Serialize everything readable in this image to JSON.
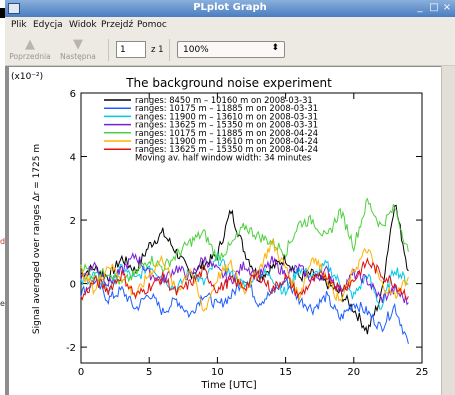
{
  "window": {
    "title": "PLplot Graph",
    "minimize_glyph": "_",
    "maximize_glyph": "□",
    "close_glyph": "×"
  },
  "left_fragments": [
    "d",
    "e"
  ],
  "menu": {
    "items": [
      {
        "name": "menu-plik",
        "label": "Plik"
      },
      {
        "name": "menu-edycja",
        "label": "Edycja"
      },
      {
        "name": "menu-widok",
        "label": "Widok"
      },
      {
        "name": "menu-przejdz",
        "label": "Przejdź"
      },
      {
        "name": "menu-pomoc",
        "label": "Pomoc"
      }
    ]
  },
  "toolbar": {
    "prev_label": "Poprzednia",
    "next_label": "Następna",
    "page_value": "1",
    "of_label": "z 1",
    "zoom_value": "100%",
    "chevron": "⌃⌄"
  },
  "colors": {
    "titlebar": "#4a7cc0",
    "black": "#000000",
    "blue": "#1f5fff",
    "cyan": "#00c8e6",
    "violet": "#7a1fd6",
    "green": "#4fcf3f",
    "orange": "#ffb000",
    "red": "#e01010"
  },
  "chart_data": {
    "type": "line",
    "title": "The background noise experiment",
    "xlabel": "Time [UTC]",
    "ylabel": "Signal averaged over ranges Δr = 1725 m",
    "y_exponent_label": "(x10⁻²)",
    "xlim": [
      0,
      25
    ],
    "ylim": [
      -2.5,
      6.0
    ],
    "xticks": [
      0,
      5,
      10,
      15,
      20,
      25
    ],
    "yticks": [
      -2,
      0,
      2,
      4,
      6
    ],
    "legend_position": "top",
    "legend_note": "Moving av. half window width: 34 minutes",
    "series": [
      {
        "name": "ranges: 8450 m – 10160 m on 2008-03-31",
        "color": "#000000",
        "x": [
          0,
          1,
          2,
          3,
          4,
          5,
          6,
          7,
          8,
          9,
          10,
          11,
          12,
          13,
          14,
          15,
          16,
          17,
          18,
          19,
          20,
          21,
          22,
          23,
          24
        ],
        "y": [
          0.3,
          0.5,
          0.2,
          0.8,
          0.4,
          1.2,
          1.6,
          1.0,
          0.3,
          0.6,
          0.9,
          2.3,
          1.0,
          0.2,
          0.5,
          0.8,
          0.2,
          0.3,
          0.0,
          -0.3,
          -0.8,
          -1.5,
          -0.4,
          2.6,
          0.4
        ]
      },
      {
        "name": "ranges: 10175 m – 11885 m on 2008-03-31",
        "color": "#1f5fff",
        "x": [
          0,
          1,
          2,
          3,
          4,
          5,
          6,
          7,
          8,
          9,
          10,
          11,
          12,
          13,
          14,
          15,
          16,
          17,
          18,
          19,
          20,
          21,
          22,
          23,
          24
        ],
        "y": [
          -0.3,
          0.1,
          -0.5,
          -0.2,
          -0.8,
          -0.3,
          -0.9,
          -0.5,
          -1.0,
          -0.3,
          -0.7,
          -0.4,
          0.2,
          -0.6,
          -0.3,
          0.1,
          -0.5,
          -0.8,
          -0.4,
          -1.1,
          -0.6,
          -0.9,
          -1.4,
          -0.7,
          -1.9
        ]
      },
      {
        "name": "ranges: 11900 m – 13610 m on 2008-03-31",
        "color": "#00c8e6",
        "x": [
          0,
          1,
          2,
          3,
          4,
          5,
          6,
          7,
          8,
          9,
          10,
          11,
          12,
          13,
          14,
          15,
          16,
          17,
          18,
          19,
          20,
          21,
          22,
          23,
          24
        ],
        "y": [
          0.0,
          0.3,
          -0.2,
          0.5,
          0.1,
          0.6,
          0.2,
          -0.2,
          0.4,
          0.0,
          0.8,
          0.3,
          -0.1,
          0.4,
          0.2,
          -0.3,
          0.5,
          0.2,
          0.6,
          0.0,
          -0.4,
          0.3,
          -0.8,
          0.5,
          0.0
        ]
      },
      {
        "name": "ranges: 13625 m – 15350 m on 2008-03-31",
        "color": "#7a1fd6",
        "x": [
          0,
          1,
          2,
          3,
          4,
          5,
          6,
          7,
          8,
          9,
          10,
          11,
          12,
          13,
          14,
          15,
          16,
          17,
          18,
          19,
          20,
          21,
          22,
          23,
          24
        ],
        "y": [
          0.2,
          0.6,
          0.0,
          0.4,
          0.9,
          0.3,
          0.1,
          0.5,
          0.2,
          0.8,
          0.4,
          0.1,
          0.6,
          0.2,
          0.7,
          0.3,
          0.5,
          0.1,
          0.4,
          -0.2,
          0.3,
          0.1,
          -0.5,
          -0.2,
          -0.6
        ]
      },
      {
        "name": "ranges: 10175 m – 11885 m on 2008-04-24",
        "color": "#4fcf3f",
        "x": [
          0,
          1,
          2,
          3,
          4,
          5,
          6,
          7,
          8,
          9,
          10,
          11,
          12,
          13,
          14,
          15,
          16,
          17,
          18,
          19,
          20,
          21,
          22,
          23,
          24
        ],
        "y": [
          0.6,
          0.2,
          0.4,
          0.0,
          0.3,
          0.8,
          0.5,
          0.9,
          1.3,
          1.6,
          0.8,
          1.2,
          1.8,
          1.5,
          1.3,
          1.0,
          1.9,
          2.0,
          1.4,
          2.3,
          1.2,
          2.6,
          1.8,
          2.4,
          1.0
        ]
      },
      {
        "name": "ranges: 11900 m – 13610 m on 2008-04-24",
        "color": "#ffb000",
        "x": [
          0,
          1,
          2,
          3,
          4,
          5,
          6,
          7,
          8,
          9,
          10,
          11,
          12,
          13,
          14,
          15,
          16,
          17,
          18,
          19,
          20,
          21,
          22,
          23,
          24
        ],
        "y": [
          0.4,
          -0.2,
          0.6,
          0.2,
          -0.4,
          0.3,
          0.8,
          -0.3,
          0.5,
          -0.9,
          0.2,
          0.6,
          -0.2,
          0.4,
          1.3,
          0.5,
          -0.4,
          0.9,
          0.2,
          -0.6,
          0.4,
          1.1,
          0.0,
          -0.4,
          0.2
        ]
      },
      {
        "name": "ranges: 13625 m – 15350 m on 2008-04-24",
        "color": "#e01010",
        "x": [
          0,
          1,
          2,
          3,
          4,
          5,
          6,
          7,
          8,
          9,
          10,
          11,
          12,
          13,
          14,
          15,
          16,
          17,
          18,
          19,
          20,
          21,
          22,
          23,
          24
        ],
        "y": [
          -0.5,
          0.1,
          -0.2,
          0.3,
          -0.4,
          -0.1,
          0.2,
          -0.3,
          0.0,
          0.4,
          -0.2,
          0.1,
          -0.1,
          0.3,
          -0.2,
          0.2,
          -0.4,
          0.1,
          0.3,
          -0.2,
          0.1,
          0.7,
          0.3,
          0.0,
          -0.4
        ]
      }
    ]
  }
}
